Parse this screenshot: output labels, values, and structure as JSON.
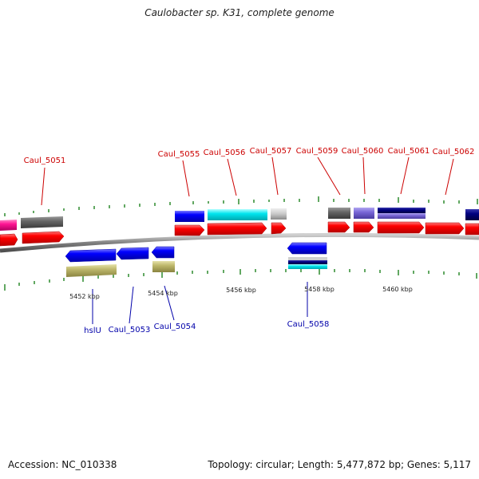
{
  "title": "Caulobacter sp. K31, complete genome",
  "footer": {
    "accession": "Accession: NC_010338",
    "summary": "Topology: circular; Length: 5,477,872 bp; Genes: 5,117"
  },
  "colors": {
    "forward_label": "#cc0000",
    "reverse_label": "#0000aa",
    "backbone": "#808080",
    "tick": "#2e8b2e",
    "cds_forward": "#ff0000",
    "cds_reverse": "#0000ff"
  },
  "scale_labels": [
    "5452 kbp",
    "5454 kbp",
    "5456 kbp",
    "5458 kbp",
    "5460 kbp"
  ],
  "forward_genes": [
    {
      "id": "pink-partial",
      "label": "",
      "color": "#ff1493"
    },
    {
      "id": "Caul_5051",
      "label": "Caul_5051",
      "color": "#666666"
    },
    {
      "id": "Caul_5055",
      "label": "Caul_5055",
      "color": "#0000ff"
    },
    {
      "id": "Caul_5056",
      "label": "Caul_5056",
      "color": "#00e5ee"
    },
    {
      "id": "Caul_5057",
      "label": "Caul_5057",
      "color": "#c0c0c0"
    },
    {
      "id": "Caul_5059",
      "label": "Caul_5059",
      "color": "#5a5a5a"
    },
    {
      "id": "Caul_5060",
      "label": "Caul_5060",
      "color": "#7a68d8"
    },
    {
      "id": "Caul_5061",
      "label": "Caul_5061",
      "color": "#000080"
    },
    {
      "id": "Caul_5062",
      "label": "Caul_5062",
      "color": "#ff0000"
    },
    {
      "id": "navy-partial",
      "label": "",
      "color": "#000080"
    }
  ],
  "reverse_genes": [
    {
      "id": "hslU",
      "label": "hslU",
      "color": "#bdb76b"
    },
    {
      "id": "Caul_5053",
      "label": "Caul_5053",
      "color": "#0000ff"
    },
    {
      "id": "Caul_5054",
      "label": "Caul_5054",
      "color": "#bdb76b"
    },
    {
      "id": "Caul_5058",
      "label": "Caul_5058",
      "color": "#00e5ee"
    }
  ]
}
